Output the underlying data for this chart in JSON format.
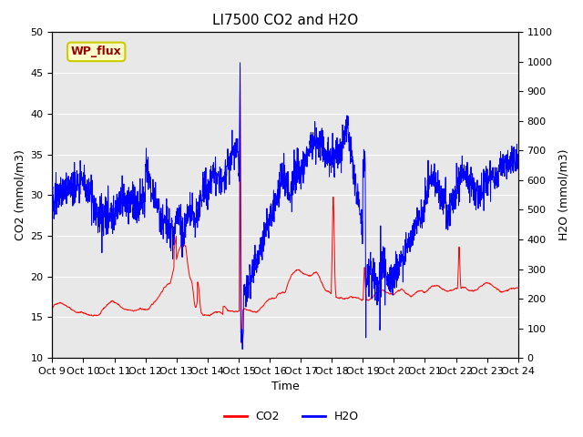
{
  "title": "LI7500 CO2 and H2O",
  "xlabel": "Time",
  "ylabel_left": "CO2 (mmol/m3)",
  "ylabel_right": "H2O (mmol/m3)",
  "ylim_left": [
    10,
    50
  ],
  "ylim_right": [
    0,
    1100
  ],
  "yticks_left": [
    10,
    15,
    20,
    25,
    30,
    35,
    40,
    45,
    50
  ],
  "yticks_right": [
    0,
    100,
    200,
    300,
    400,
    500,
    600,
    700,
    800,
    900,
    1000,
    1100
  ],
  "xtick_labels": [
    "Oct 9",
    "Oct 10",
    "Oct 11",
    "Oct 12",
    "Oct 13",
    "Oct 14",
    "Oct 15",
    "Oct 16",
    "Oct 17",
    "Oct 18",
    "Oct 19",
    "Oct 20",
    "Oct 21",
    "Oct 22",
    "Oct 23",
    "Oct 24"
  ],
  "co2_color": "#FF0000",
  "h2o_color": "#0000FF",
  "bg_color": "#E8E8E8",
  "annotation_text": "WP_flux",
  "annotation_bg": "#FFFFCC",
  "annotation_border": "#CCCC00",
  "annotation_text_color": "#990000",
  "legend_co2": "CO2",
  "legend_h2o": "H2O",
  "title_fontsize": 11,
  "axis_fontsize": 9,
  "tick_fontsize": 8
}
